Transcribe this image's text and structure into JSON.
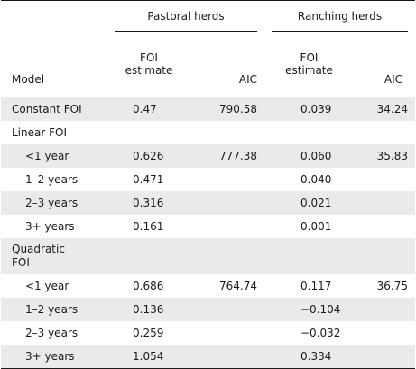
{
  "header": {
    "model_label": "Model",
    "group_pastoral": "Pastoral herds",
    "group_ranching": "Ranching herds",
    "foi_estimate_line1": "FOI",
    "foi_estimate_line2": "estimate",
    "aic_label": "AIC"
  },
  "rows": [
    {
      "model": "Constant FOI",
      "indent": false,
      "pastoral_foi": "0.47",
      "pastoral_aic": "790.58",
      "ranching_foi": "0.039",
      "ranching_aic": "34.24"
    },
    {
      "model": "Linear FOI",
      "indent": false,
      "pastoral_foi": "",
      "pastoral_aic": "",
      "ranching_foi": "",
      "ranching_aic": ""
    },
    {
      "model": "<1 year",
      "indent": true,
      "pastoral_foi": "0.626",
      "pastoral_aic": "777.38",
      "ranching_foi": "0.060",
      "ranching_aic": "35.83"
    },
    {
      "model": "1–2 years",
      "indent": true,
      "pastoral_foi": "0.471",
      "pastoral_aic": "",
      "ranching_foi": "0.040",
      "ranching_aic": ""
    },
    {
      "model": "2–3 years",
      "indent": true,
      "pastoral_foi": "0.316",
      "pastoral_aic": "",
      "ranching_foi": "0.021",
      "ranching_aic": ""
    },
    {
      "model": "3+ years",
      "indent": true,
      "pastoral_foi": "0.161",
      "pastoral_aic": "",
      "ranching_foi": "0.001",
      "ranching_aic": ""
    },
    {
      "model_line1": "Quadratic",
      "model_line2": "FOI",
      "indent": false,
      "pastoral_foi": "",
      "pastoral_aic": "",
      "ranching_foi": "",
      "ranching_aic": ""
    },
    {
      "model": "<1 year",
      "indent": true,
      "pastoral_foi": "0.686",
      "pastoral_aic": "764.74",
      "ranching_foi": "0.117",
      "ranching_aic": "36.75"
    },
    {
      "model": "1–2 years",
      "indent": true,
      "pastoral_foi": "0.136",
      "pastoral_aic": "",
      "ranching_foi": "−0.104",
      "ranching_aic": ""
    },
    {
      "model": "2–3 years",
      "indent": true,
      "pastoral_foi": "0.259",
      "pastoral_aic": "",
      "ranching_foi": "−0.032",
      "ranching_aic": ""
    },
    {
      "model": "3+ years",
      "indent": true,
      "pastoral_foi": "1.054",
      "pastoral_aic": "",
      "ranching_foi": "0.334",
      "ranching_aic": ""
    }
  ]
}
